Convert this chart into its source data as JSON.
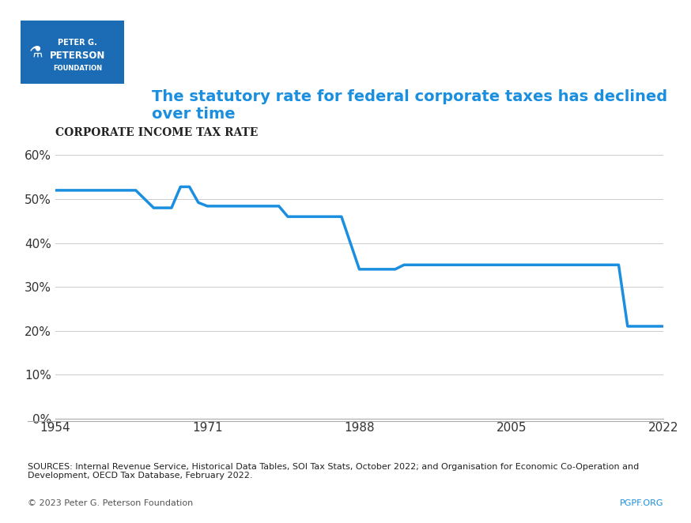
{
  "title": "The statutory rate for federal corporate taxes has declined\nover time",
  "axis_label": "Corporate Income Tax Rate",
  "line_color": "#1b8fdf",
  "background_color": "#ffffff",
  "xlim": [
    1954,
    2022
  ],
  "ylim": [
    0,
    0.62
  ],
  "yticks": [
    0.0,
    0.1,
    0.2,
    0.3,
    0.4,
    0.5,
    0.6
  ],
  "ytick_labels": [
    "0%",
    "10%",
    "20%",
    "30%",
    "40%",
    "50%",
    "60%"
  ],
  "xticks": [
    1954,
    1971,
    1988,
    2005,
    2022
  ],
  "source_text": "SOURCES: Internal Revenue Service, Historical Data Tables, SOI Tax Stats, October 2022; and Organisation for Economic Co-Operation and\nDevelopment, OECD Tax Database, February 2022.",
  "copyright_text": "© 2023 Peter G. Peterson Foundation",
  "pgpf_text": "PGPF.ORG",
  "years": [
    1954,
    1963,
    1964,
    1965,
    1966,
    1967,
    1968,
    1969,
    1970,
    1971,
    1972,
    1973,
    1974,
    1975,
    1976,
    1977,
    1978,
    1979,
    1980,
    1981,
    1982,
    1983,
    1984,
    1985,
    1986,
    1987,
    1988,
    1989,
    1990,
    1991,
    1992,
    1993,
    1994,
    1995,
    1996,
    1997,
    1998,
    1999,
    2000,
    2001,
    2002,
    2003,
    2004,
    2005,
    2006,
    2007,
    2008,
    2009,
    2010,
    2011,
    2012,
    2013,
    2014,
    2015,
    2016,
    2017,
    2018,
    2019,
    2020,
    2021,
    2022
  ],
  "rates": [
    0.52,
    0.52,
    0.5,
    0.48,
    0.48,
    0.48,
    0.528,
    0.528,
    0.492,
    0.484,
    0.484,
    0.484,
    0.484,
    0.484,
    0.484,
    0.484,
    0.484,
    0.484,
    0.46,
    0.46,
    0.46,
    0.46,
    0.46,
    0.46,
    0.46,
    0.4,
    0.34,
    0.34,
    0.34,
    0.34,
    0.34,
    0.35,
    0.35,
    0.35,
    0.35,
    0.35,
    0.35,
    0.35,
    0.35,
    0.35,
    0.35,
    0.35,
    0.35,
    0.35,
    0.35,
    0.35,
    0.35,
    0.35,
    0.35,
    0.35,
    0.35,
    0.35,
    0.35,
    0.35,
    0.35,
    0.35,
    0.21,
    0.21,
    0.21,
    0.21,
    0.21
  ],
  "title_color": "#1b8fdf",
  "axis_label_color": "#222222",
  "line_width": 2.5
}
